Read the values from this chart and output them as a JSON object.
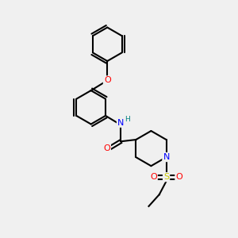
{
  "background_color": "#f0f0f0",
  "bond_color": "#000000",
  "atom_colors": {
    "O": "#ff0000",
    "N": "#0000ff",
    "S": "#cccc00",
    "H": "#008080",
    "C": "#000000"
  },
  "figsize": [
    3.0,
    3.0
  ],
  "dpi": 100
}
